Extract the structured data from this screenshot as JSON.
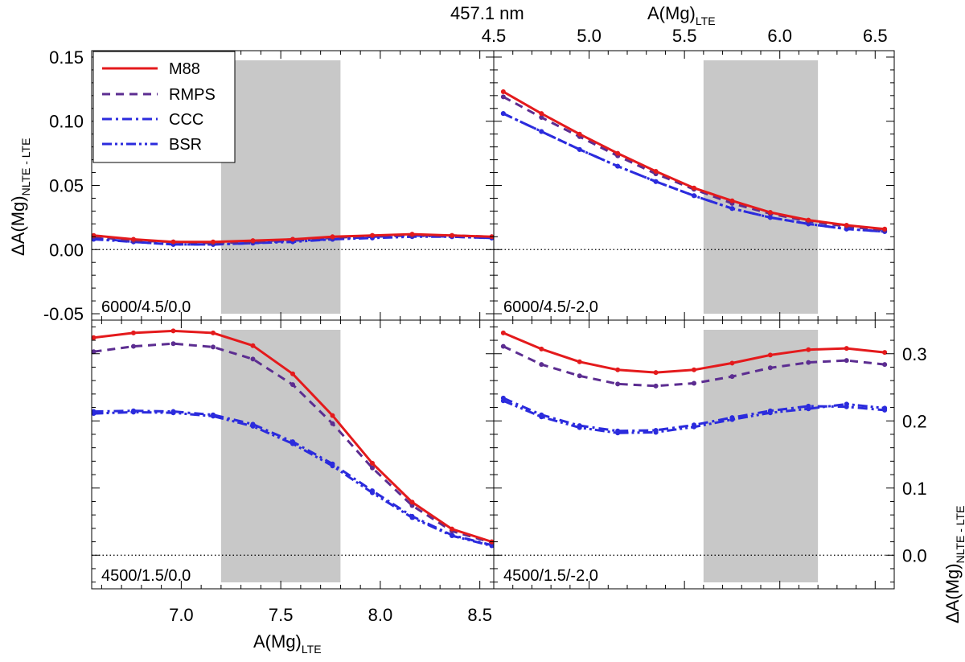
{
  "chart_data": {
    "type": "line",
    "top_label": "457.1 nm",
    "legend": {
      "placement": "top-left",
      "entries": [
        {
          "name": "M88",
          "color": "#e41a1c",
          "style": "solid"
        },
        {
          "name": "RMPS",
          "color": "#5c2d91",
          "style": "dashed"
        },
        {
          "name": "CCC",
          "color": "#2b2bdd",
          "style": "dashdot"
        },
        {
          "name": "BSR",
          "color": "#2b2bdd",
          "style": "dashdotdot"
        }
      ]
    },
    "axes": {
      "bottom_xlabel": {
        "main": "A(Mg)",
        "sub": "LTE"
      },
      "top_xlabel": {
        "main": "A(Mg)",
        "sub": "LTE"
      },
      "left_ylabel": {
        "main": "ΔA(Mg)",
        "sub": "NLTE - LTE"
      },
      "right_ylabel": {
        "main": "ΔA(Mg)",
        "sub": "NLTE - LTE"
      },
      "left_column_xlim": [
        6.55,
        8.57
      ],
      "left_column_xticks": [
        "7.0",
        "7.5",
        "8.0",
        "8.5"
      ],
      "right_column_xlim": [
        4.5,
        6.6
      ],
      "right_column_xticks": [
        "4.5",
        "5.0",
        "5.5",
        "6.0",
        "6.5"
      ],
      "top_row_ylim": [
        -0.055,
        0.155
      ],
      "top_row_yticks": [
        "-0.05",
        "0.00",
        "0.05",
        "0.10",
        "0.15"
      ],
      "bottom_row_ylim": [
        -0.05,
        0.35
      ],
      "bottom_row_yticks": [
        "0.0",
        "0.1",
        "0.2",
        "0.3"
      ]
    },
    "panels": [
      {
        "label": "6000/4.5/0.0",
        "column": "left",
        "row": "top",
        "shaded_range": [
          7.2,
          7.8
        ],
        "x": [
          6.56,
          6.76,
          6.96,
          7.16,
          7.36,
          7.56,
          7.76,
          7.96,
          8.16,
          8.36,
          8.56
        ],
        "series": [
          {
            "name": "M88",
            "values": [
              0.011,
              0.008,
              0.006,
              0.006,
              0.007,
              0.008,
              0.01,
              0.011,
              0.012,
              0.011,
              0.01
            ]
          },
          {
            "name": "RMPS",
            "values": [
              0.01,
              0.007,
              0.006,
              0.005,
              0.006,
              0.008,
              0.009,
              0.011,
              0.011,
              0.011,
              0.01
            ]
          },
          {
            "name": "CCC",
            "values": [
              0.009,
              0.006,
              0.004,
              0.004,
              0.005,
              0.007,
              0.008,
              0.01,
              0.011,
              0.01,
              0.009
            ]
          },
          {
            "name": "BSR",
            "values": [
              0.008,
              0.006,
              0.004,
              0.004,
              0.005,
              0.006,
              0.008,
              0.009,
              0.01,
              0.01,
              0.009
            ]
          }
        ]
      },
      {
        "label": "6000/4.5/-2.0",
        "column": "right",
        "row": "top",
        "shaded_range": [
          5.6,
          6.2
        ],
        "x": [
          4.55,
          4.75,
          4.95,
          5.15,
          5.35,
          5.55,
          5.75,
          5.95,
          6.15,
          6.35,
          6.55
        ],
        "series": [
          {
            "name": "M88",
            "values": [
              0.123,
              0.106,
              0.09,
              0.075,
              0.061,
              0.048,
              0.038,
              0.029,
              0.023,
              0.019,
              0.016
            ]
          },
          {
            "name": "RMPS",
            "values": [
              0.119,
              0.103,
              0.088,
              0.073,
              0.059,
              0.047,
              0.036,
              0.028,
              0.022,
              0.018,
              0.015
            ]
          },
          {
            "name": "CCC",
            "values": [
              0.106,
              0.092,
              0.078,
              0.065,
              0.053,
              0.042,
              0.032,
              0.025,
              0.02,
              0.016,
              0.014
            ]
          },
          {
            "name": "BSR",
            "values": [
              0.106,
              0.092,
              0.078,
              0.065,
              0.053,
              0.042,
              0.032,
              0.025,
              0.02,
              0.016,
              0.014
            ]
          }
        ]
      },
      {
        "label": "4500/1.5/0.0",
        "column": "left",
        "row": "bottom",
        "shaded_range": [
          7.2,
          7.8
        ],
        "x": [
          6.56,
          6.76,
          6.96,
          7.16,
          7.36,
          7.56,
          7.76,
          7.96,
          8.16,
          8.36,
          8.56
        ],
        "series": [
          {
            "name": "M88",
            "values": [
              0.324,
              0.331,
              0.334,
              0.331,
              0.312,
              0.27,
              0.208,
              0.137,
              0.079,
              0.039,
              0.02
            ]
          },
          {
            "name": "RMPS",
            "values": [
              0.303,
              0.311,
              0.315,
              0.31,
              0.292,
              0.254,
              0.196,
              0.13,
              0.074,
              0.036,
              0.019
            ]
          },
          {
            "name": "CCC",
            "values": [
              0.214,
              0.215,
              0.214,
              0.209,
              0.195,
              0.169,
              0.136,
              0.096,
              0.058,
              0.03,
              0.015
            ]
          },
          {
            "name": "BSR",
            "values": [
              0.211,
              0.213,
              0.212,
              0.207,
              0.192,
              0.166,
              0.133,
              0.093,
              0.056,
              0.029,
              0.014
            ]
          }
        ]
      },
      {
        "label": "4500/1.5/-2.0",
        "column": "right",
        "row": "bottom",
        "shaded_range": [
          5.6,
          6.2
        ],
        "x": [
          4.55,
          4.75,
          4.95,
          5.15,
          5.35,
          5.55,
          5.75,
          5.95,
          6.15,
          6.35,
          6.55
        ],
        "series": [
          {
            "name": "M88",
            "values": [
              0.331,
              0.307,
              0.288,
              0.276,
              0.272,
              0.276,
              0.286,
              0.298,
              0.306,
              0.308,
              0.302
            ]
          },
          {
            "name": "RMPS",
            "values": [
              0.311,
              0.284,
              0.267,
              0.255,
              0.252,
              0.256,
              0.266,
              0.279,
              0.287,
              0.29,
              0.284
            ]
          },
          {
            "name": "CCC",
            "values": [
              0.234,
              0.209,
              0.193,
              0.185,
              0.186,
              0.194,
              0.205,
              0.215,
              0.222,
              0.221,
              0.216
            ]
          },
          {
            "name": "BSR",
            "values": [
              0.23,
              0.206,
              0.19,
              0.182,
              0.183,
              0.191,
              0.202,
              0.212,
              0.218,
              0.225,
              0.219
            ]
          }
        ]
      }
    ]
  }
}
